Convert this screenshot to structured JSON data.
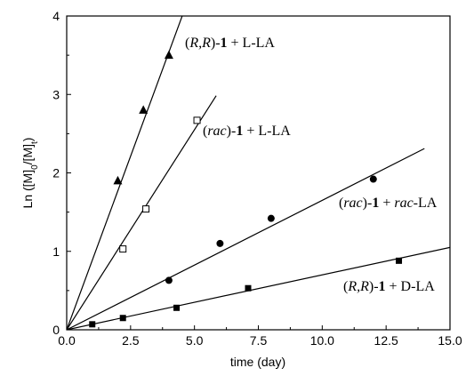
{
  "chart_data": {
    "type": "scatter",
    "xlabel": "time (day)",
    "ylabel": "Ln ([M]0/[M]t)",
    "xlim": [
      0,
      15
    ],
    "ylim": [
      0,
      4
    ],
    "x_ticks": [
      "0.0",
      "2.5",
      "5.0",
      "7.5",
      "10.0",
      "12.5",
      "15.0"
    ],
    "y_ticks": [
      "0",
      "1",
      "2",
      "3",
      "4"
    ],
    "grid": false,
    "series": [
      {
        "name": "(R,R)-1 + L-LA",
        "marker": "triangle",
        "color": "#000000",
        "x": [
          2.0,
          3.0,
          4.0
        ],
        "y": [
          1.9,
          2.8,
          3.5
        ],
        "slope": 0.885,
        "fit_x_end": 5.0,
        "label_parts": [
          {
            "t": "(",
            "i": false,
            "b": false
          },
          {
            "t": "R,R",
            "i": true,
            "b": false
          },
          {
            "t": ")-",
            "i": false,
            "b": false
          },
          {
            "t": "1",
            "i": false,
            "b": true
          },
          {
            "t": " + L-LA",
            "i": false,
            "b": false
          }
        ]
      },
      {
        "name": "(rac)-1 + L-LA",
        "marker": "open-square",
        "color": "#000000",
        "x": [
          2.2,
          3.1,
          5.1
        ],
        "y": [
          1.03,
          1.54,
          2.67
        ],
        "slope": 0.51,
        "fit_x_end": 5.85,
        "label_parts": [
          {
            "t": "(",
            "i": false,
            "b": false
          },
          {
            "t": "rac",
            "i": true,
            "b": false
          },
          {
            "t": ")-",
            "i": false,
            "b": false
          },
          {
            "t": "1",
            "i": false,
            "b": true
          },
          {
            "t": " + L-LA",
            "i": false,
            "b": false
          }
        ]
      },
      {
        "name": "(rac)-1 + rac-LA",
        "marker": "circle",
        "color": "#000000",
        "x": [
          4.0,
          6.0,
          8.0,
          12.0
        ],
        "y": [
          0.63,
          1.1,
          1.42,
          1.92
        ],
        "slope": 0.165,
        "fit_x_end": 14.0,
        "label_parts": [
          {
            "t": "(",
            "i": false,
            "b": false
          },
          {
            "t": "rac",
            "i": true,
            "b": false
          },
          {
            "t": ")-",
            "i": false,
            "b": false
          },
          {
            "t": "1",
            "i": false,
            "b": true
          },
          {
            "t": " + ",
            "i": false,
            "b": false
          },
          {
            "t": "rac",
            "i": true,
            "b": false
          },
          {
            "t": "-LA",
            "i": false,
            "b": false
          }
        ]
      },
      {
        "name": "(R,R)-1 + D-LA",
        "marker": "square",
        "color": "#000000",
        "x": [
          1.0,
          2.2,
          4.3,
          7.1,
          13.0
        ],
        "y": [
          0.07,
          0.15,
          0.28,
          0.53,
          0.88
        ],
        "slope": 0.07,
        "fit_x_end": 15.0,
        "label_parts": [
          {
            "t": "(",
            "i": false,
            "b": false
          },
          {
            "t": "R,R",
            "i": true,
            "b": false
          },
          {
            "t": ")-",
            "i": false,
            "b": false
          },
          {
            "t": "1",
            "i": false,
            "b": true
          },
          {
            "t": " + D-LA",
            "i": false,
            "b": false
          }
        ]
      }
    ]
  }
}
